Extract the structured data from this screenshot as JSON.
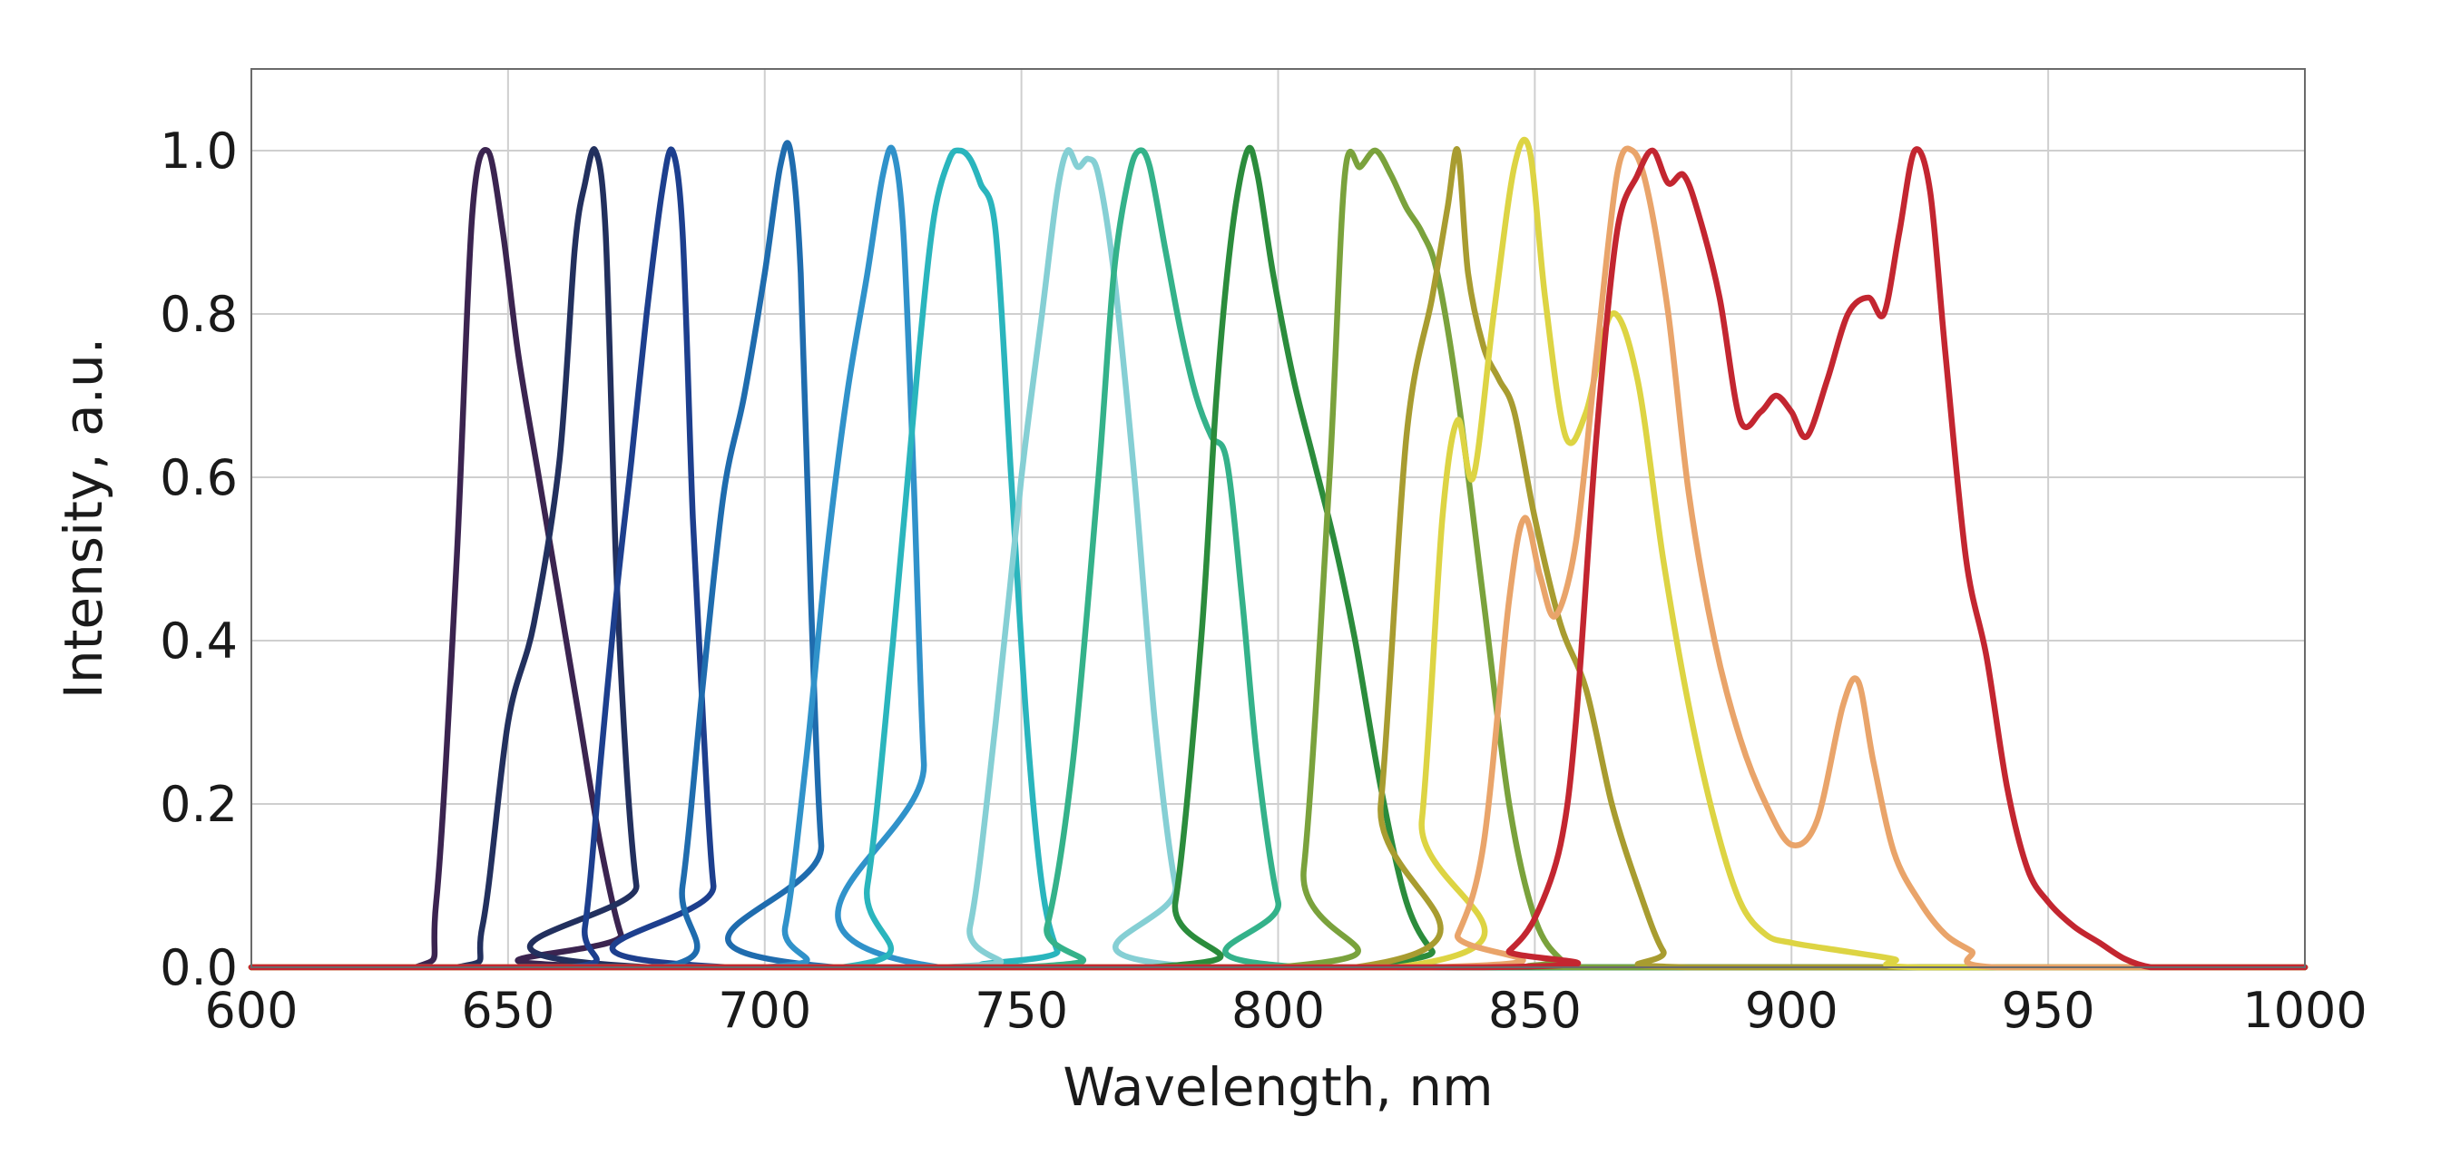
{
  "chart_data": {
    "type": "line",
    "title": "",
    "xlabel": "Wavelength, nm",
    "ylabel": "Intensity, a.u.",
    "xlim": [
      600,
      1000
    ],
    "ylim": [
      0,
      1.1
    ],
    "xticks": [
      600,
      650,
      700,
      750,
      800,
      850,
      900,
      950,
      1000
    ],
    "xtick_labels": [
      "600",
      "650",
      "700",
      "750",
      "800",
      "850",
      "900",
      "950",
      "1000"
    ],
    "yticks": [
      0,
      0.2,
      0.4,
      0.6,
      0.8,
      1.0
    ],
    "ytick_labels": [
      "0.0",
      "0.2",
      "0.4",
      "0.6",
      "0.8",
      "1.0"
    ],
    "grid": true,
    "legend": "none",
    "series": [
      {
        "color": "#3b2450",
        "x": [
          600,
          632,
          636,
          640,
          643,
          646,
          649,
          652,
          656,
          660,
          664,
          668,
          672,
          676,
          1000
        ],
        "y": [
          0,
          0,
          0.08,
          0.5,
          0.92,
          1.0,
          0.9,
          0.75,
          0.6,
          0.45,
          0.3,
          0.15,
          0.04,
          0,
          0
        ]
      },
      {
        "color": "#22305e",
        "x": [
          600,
          640,
          645,
          650,
          655,
          660,
          663,
          665,
          667,
          669,
          671,
          673,
          675,
          678,
          1000
        ],
        "y": [
          0,
          0,
          0.05,
          0.3,
          0.42,
          0.62,
          0.88,
          0.96,
          1.0,
          0.9,
          0.5,
          0.25,
          0.1,
          0,
          0
        ]
      },
      {
        "color": "#1d3f8e",
        "x": [
          600,
          662,
          665,
          668,
          671,
          674,
          677,
          680,
          682,
          684,
          686,
          688,
          690,
          693,
          1000
        ],
        "y": [
          0,
          0,
          0.05,
          0.25,
          0.45,
          0.62,
          0.8,
          0.95,
          1.0,
          0.9,
          0.55,
          0.3,
          0.1,
          0,
          0
        ]
      },
      {
        "color": "#1f6cae",
        "x": [
          600,
          680,
          684,
          688,
          692,
          696,
          700,
          703,
          705,
          707,
          709,
          711,
          714,
          1000
        ],
        "y": [
          0,
          0,
          0.1,
          0.35,
          0.58,
          0.7,
          0.85,
          0.98,
          1.0,
          0.85,
          0.45,
          0.15,
          0,
          0
        ]
      },
      {
        "color": "#3092ca",
        "x": [
          600,
          700,
          704,
          708,
          712,
          716,
          720,
          723,
          725,
          727,
          729,
          731,
          734,
          1000
        ],
        "y": [
          0,
          0,
          0.05,
          0.25,
          0.5,
          0.7,
          0.85,
          0.97,
          1.0,
          0.9,
          0.6,
          0.25,
          0,
          0
        ]
      },
      {
        "color": "#2ab5bd",
        "x": [
          600,
          715,
          720,
          725,
          730,
          733,
          736,
          738,
          740,
          742,
          745,
          748,
          751,
          754,
          757,
          760,
          1000
        ],
        "y": [
          0,
          0,
          0.1,
          0.4,
          0.75,
          0.92,
          0.99,
          1.0,
          0.99,
          0.96,
          0.9,
          0.6,
          0.3,
          0.1,
          0.02,
          0,
          0
        ]
      },
      {
        "color": "#85cfd4",
        "x": [
          600,
          735,
          740,
          745,
          750,
          754,
          757,
          759,
          761,
          763,
          765,
          768,
          772,
          776,
          780,
          785,
          1000
        ],
        "y": [
          0,
          0,
          0.05,
          0.3,
          0.6,
          0.8,
          0.95,
          1.0,
          0.98,
          0.99,
          0.97,
          0.85,
          0.6,
          0.3,
          0.1,
          0,
          0
        ]
      },
      {
        "color": "#34b28a",
        "x": [
          600,
          750,
          755,
          760,
          765,
          768,
          771,
          773,
          775,
          778,
          781,
          784,
          787,
          790,
          793,
          796,
          800,
          805,
          1000
        ],
        "y": [
          0,
          0,
          0.05,
          0.25,
          0.6,
          0.85,
          0.97,
          1.0,
          0.98,
          0.88,
          0.78,
          0.7,
          0.65,
          0.62,
          0.45,
          0.25,
          0.08,
          0,
          0
        ]
      },
      {
        "color": "#2b8c3c",
        "x": [
          600,
          775,
          780,
          785,
          788,
          791,
          794,
          796,
          799,
          803,
          807,
          811,
          815,
          820,
          825,
          830,
          835,
          1000
        ],
        "y": [
          0,
          0,
          0.08,
          0.4,
          0.7,
          0.9,
          1.0,
          0.97,
          0.85,
          0.72,
          0.62,
          0.52,
          0.4,
          0.22,
          0.08,
          0.02,
          0,
          0
        ]
      },
      {
        "color": "#7aa23c",
        "x": [
          600,
          800,
          805,
          810,
          813,
          816,
          819,
          822,
          825,
          828,
          831,
          835,
          840,
          845,
          850,
          855,
          860,
          1000
        ],
        "y": [
          0,
          0,
          0.12,
          0.6,
          0.97,
          0.98,
          1.0,
          0.97,
          0.93,
          0.9,
          0.85,
          0.7,
          0.45,
          0.2,
          0.06,
          0.01,
          0,
          0
        ]
      },
      {
        "color": "#a89c30",
        "x": [
          600,
          815,
          820,
          825,
          830,
          833,
          835,
          837,
          840,
          843,
          846,
          850,
          855,
          860,
          865,
          870,
          875,
          880,
          1000
        ],
        "y": [
          0,
          0,
          0.2,
          0.65,
          0.82,
          0.93,
          1.0,
          0.85,
          0.76,
          0.72,
          0.68,
          0.55,
          0.42,
          0.34,
          0.2,
          0.1,
          0.02,
          0,
          0
        ]
      },
      {
        "color": "#ddd443",
        "x": [
          600,
          823,
          828,
          832,
          835,
          838,
          842,
          846,
          849,
          852,
          856,
          860,
          865,
          870,
          875,
          880,
          885,
          890,
          895,
          900,
          910,
          920,
          925,
          1000
        ],
        "y": [
          0,
          0,
          0.18,
          0.55,
          0.67,
          0.6,
          0.8,
          0.98,
          1.0,
          0.82,
          0.65,
          0.68,
          0.8,
          0.72,
          0.5,
          0.32,
          0.18,
          0.08,
          0.04,
          0.03,
          0.02,
          0.01,
          0,
          0
        ]
      },
      {
        "color": "#e9a46a",
        "x": [
          600,
          830,
          835,
          840,
          845,
          848,
          851,
          854,
          858,
          862,
          866,
          869,
          872,
          876,
          880,
          885,
          890,
          895,
          900,
          905,
          910,
          913,
          916,
          920,
          925,
          930,
          935,
          940,
          1000
        ],
        "y": [
          0,
          0,
          0.04,
          0.15,
          0.45,
          0.55,
          0.48,
          0.43,
          0.52,
          0.75,
          0.97,
          1.0,
          0.95,
          0.8,
          0.58,
          0.4,
          0.28,
          0.2,
          0.15,
          0.18,
          0.32,
          0.35,
          0.25,
          0.14,
          0.08,
          0.04,
          0.02,
          0,
          0
        ]
      },
      {
        "color": "#c32630",
        "x": [
          600,
          840,
          845,
          850,
          855,
          858,
          862,
          866,
          870,
          873,
          876,
          879,
          882,
          886,
          890,
          894,
          897,
          900,
          903,
          907,
          911,
          915,
          918,
          921,
          924,
          927,
          930,
          934,
          938,
          942,
          946,
          950,
          955,
          960,
          965,
          970,
          975,
          1000
        ],
        "y": [
          0,
          0,
          0.02,
          0.06,
          0.15,
          0.3,
          0.65,
          0.9,
          0.97,
          1.0,
          0.96,
          0.97,
          0.92,
          0.82,
          0.67,
          0.68,
          0.7,
          0.68,
          0.65,
          0.72,
          0.8,
          0.82,
          0.8,
          0.9,
          1.0,
          0.95,
          0.75,
          0.5,
          0.38,
          0.22,
          0.12,
          0.08,
          0.05,
          0.03,
          0.01,
          0,
          0,
          0
        ]
      }
    ]
  }
}
